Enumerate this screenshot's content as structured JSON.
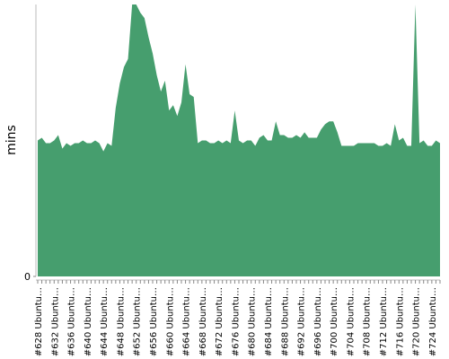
{
  "chart_data": {
    "type": "area",
    "ylabel": "mins",
    "color": "#469e6e",
    "categories": [
      "#628 Ubuntu…",
      null,
      null,
      null,
      "#632 Ubuntu…",
      null,
      null,
      null,
      "#636 Ubuntu…",
      null,
      null,
      null,
      "#640 Ubuntu…",
      null,
      null,
      null,
      "#644 Ubuntu…",
      null,
      null,
      null,
      "#648 Ubuntu…",
      null,
      null,
      null,
      "#652 Ubuntu…",
      null,
      null,
      null,
      "#656 Ubuntu…",
      null,
      null,
      null,
      "#660 Ubuntu…",
      null,
      null,
      null,
      "#664 Ubuntu…",
      null,
      null,
      null,
      "#668 Ubuntu…",
      null,
      null,
      null,
      "#672 Ubuntu…",
      null,
      null,
      null,
      "#676 Ubuntu…",
      null,
      null,
      null,
      "#680 Ubuntu…",
      null,
      null,
      null,
      "#684 Ubuntu…",
      null,
      null,
      null,
      "#688 Ubuntu…",
      null,
      null,
      null,
      "#692 Ubuntu…",
      null,
      null,
      null,
      "#696 Ubuntu…",
      null,
      null,
      null,
      "#700 Ubuntu…",
      null,
      null,
      null,
      "#704 Ubuntu…",
      null,
      null,
      null,
      "#708 Ubuntu…",
      null,
      null,
      null,
      "#712 Ubuntu…",
      null,
      null,
      null,
      "#716 Ubuntu…",
      null,
      null,
      null,
      "#720 Ubuntu…",
      null,
      null,
      null,
      "#724 Ubuntu…",
      null,
      null
    ],
    "values": [
      50,
      51,
      49,
      49,
      50,
      52,
      47,
      49,
      48,
      49,
      49,
      50,
      49,
      49,
      50,
      49,
      46,
      49,
      48,
      62,
      71,
      77,
      80,
      100,
      100,
      97,
      95,
      88,
      82,
      74,
      68,
      72,
      61,
      63,
      59,
      64,
      78,
      67,
      66,
      49,
      50,
      50,
      49,
      49,
      50,
      49,
      50,
      49,
      61,
      50,
      49,
      50,
      50,
      48,
      51,
      52,
      50,
      50,
      57,
      52,
      52,
      51,
      51,
      52,
      51,
      53,
      51,
      51,
      51,
      54,
      56,
      57,
      57,
      53,
      48,
      48,
      48,
      48,
      49,
      49,
      49,
      49,
      49,
      48,
      48,
      49,
      48,
      56,
      50,
      51,
      48,
      48,
      100,
      49,
      50,
      48,
      48,
      50,
      49
    ],
    "ylim": [
      0,
      100
    ],
    "yticks": [
      0
    ]
  }
}
